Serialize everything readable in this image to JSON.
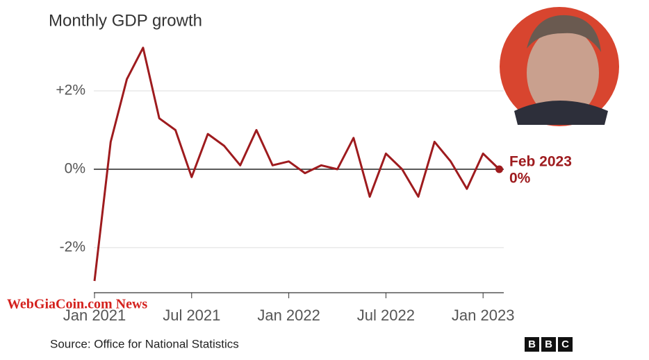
{
  "chart_data": {
    "type": "line",
    "title": "Monthly GDP growth",
    "categories": [
      "Jan 2021",
      null,
      null,
      null,
      null,
      null,
      "Jul 2021",
      null,
      null,
      null,
      null,
      null,
      "Jan 2022",
      null,
      null,
      null,
      null,
      null,
      "Jul 2022",
      null,
      null,
      null,
      null,
      null,
      "Jan 2023",
      null
    ],
    "series": [
      {
        "name": "Monthly GDP growth",
        "color": "#9e1b1e",
        "values": [
          -2.85,
          0.7,
          2.3,
          3.1,
          1.3,
          1.0,
          -0.2,
          0.9,
          0.6,
          0.1,
          1.0,
          0.1,
          0.2,
          -0.1,
          0.1,
          0.0,
          0.8,
          -0.7,
          0.4,
          0.0,
          -0.7,
          0.7,
          0.2,
          -0.5,
          0.4,
          0.0
        ]
      }
    ],
    "ylim": [
      -3.15,
      3.3
    ],
    "yticks": [
      {
        "value": -2,
        "label": "-2%"
      },
      {
        "value": 0,
        "label": "0%"
      },
      {
        "value": 2,
        "label": "+2%"
      }
    ],
    "grid": true,
    "annotations": [
      "Feb 2023",
      "0%"
    ],
    "source": "Source: Office for National Statistics",
    "watermark": "WebGiaCoin.com News",
    "logo": [
      "B",
      "B",
      "C"
    ]
  }
}
